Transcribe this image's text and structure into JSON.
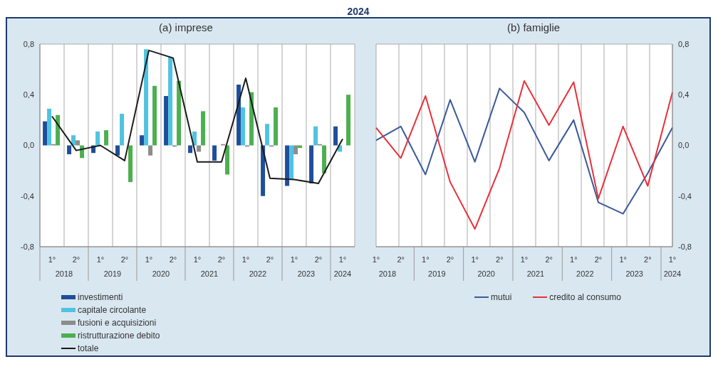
{
  "chart_data": [
    {
      "type": "bar",
      "subtitle": "2024",
      "title": "(a) imprese",
      "categories": [
        "1°",
        "2°",
        "1°",
        "2°",
        "1°",
        "2°",
        "1°",
        "2°",
        "1°",
        "2°",
        "1°",
        "2°",
        "1°"
      ],
      "annotations": [
        "2018",
        "2019",
        "2020",
        "2021",
        "2022",
        "2023",
        "2024"
      ],
      "series": [
        {
          "name": "investimenti",
          "color": "#1f4e9a",
          "values": [
            0.19,
            -0.07,
            -0.06,
            -0.08,
            0.08,
            0.39,
            -0.06,
            -0.12,
            0.48,
            -0.4,
            -0.32,
            -0.3,
            0.15
          ]
        },
        {
          "name": "capitale circolante",
          "color": "#4fc3e0",
          "values": [
            0.29,
            0.08,
            0.11,
            0.25,
            0.76,
            0.7,
            0.11,
            0.0,
            0.3,
            0.17,
            -0.27,
            0.15,
            -0.05
          ]
        },
        {
          "name": "fusioni e acquisizioni",
          "color": "#8c8c8c",
          "values": [
            0.01,
            0.04,
            0.0,
            null,
            -0.08,
            -0.01,
            -0.05,
            0.01,
            -0.01,
            -0.01,
            -0.07,
            0.01,
            0.0
          ]
        },
        {
          "name": "ristrutturazione debito",
          "color": "#4caf50",
          "values": [
            0.24,
            -0.1,
            0.12,
            -0.29,
            0.47,
            0.51,
            0.27,
            -0.23,
            0.42,
            0.3,
            -0.02,
            -0.22,
            0.4
          ]
        },
        {
          "name": "totale",
          "type": "line",
          "color": "#1a1a1a",
          "values": [
            0.23,
            -0.04,
            0.0,
            -0.12,
            0.75,
            0.69,
            -0.13,
            -0.13,
            0.53,
            -0.26,
            -0.27,
            -0.3,
            0.05
          ]
        }
      ],
      "ylim": [
        -0.8,
        0.8
      ],
      "yticks": [
        {
          "value": -0.8,
          "label": "-0,8"
        },
        {
          "value": -0.4,
          "label": "-0,4"
        },
        {
          "value": 0,
          "label": "0,0"
        },
        {
          "value": 0.4,
          "label": "0,4"
        },
        {
          "value": 0.8,
          "label": "0,8"
        }
      ],
      "grid": true,
      "legend": "bottom",
      "marker": "none",
      "line_style": "solid"
    },
    {
      "type": "line",
      "title": "(b) famiglie",
      "categories": [
        "1°",
        "2°",
        "1°",
        "2°",
        "1°",
        "2°",
        "1°",
        "2°",
        "1°",
        "2°",
        "1°",
        "2°",
        "1°"
      ],
      "annotations": [
        "2018",
        "2019",
        "2020",
        "2021",
        "2022",
        "2023",
        "2024"
      ],
      "series": [
        {
          "name": "mutui",
          "color": "#3a5a9a",
          "axis": "y2",
          "values": [
            0.04,
            0.15,
            -0.23,
            0.36,
            -0.13,
            0.45,
            0.26,
            -0.12,
            0.2,
            -0.45,
            -0.54,
            -0.22,
            0.14
          ]
        },
        {
          "name": "credito al consumo",
          "color": "#e8303a",
          "axis": "y2",
          "values": [
            0.14,
            -0.1,
            0.39,
            -0.29,
            -0.66,
            -0.18,
            0.51,
            0.16,
            0.5,
            -0.42,
            0.15,
            -0.32,
            0.42
          ]
        }
      ],
      "y2lim": [
        -0.8,
        0.8
      ],
      "y2ticks": [
        {
          "value": -0.8,
          "label": "-0,8"
        },
        {
          "value": -0.4,
          "label": "-0,4"
        },
        {
          "value": 0,
          "label": "0,0"
        },
        {
          "value": 0.4,
          "label": "0,4"
        },
        {
          "value": 0.8,
          "label": "0,8"
        }
      ],
      "tick_labels": "x",
      "grid": true,
      "legend": "bottom",
      "marker": "none",
      "line_style": "solid"
    }
  ]
}
